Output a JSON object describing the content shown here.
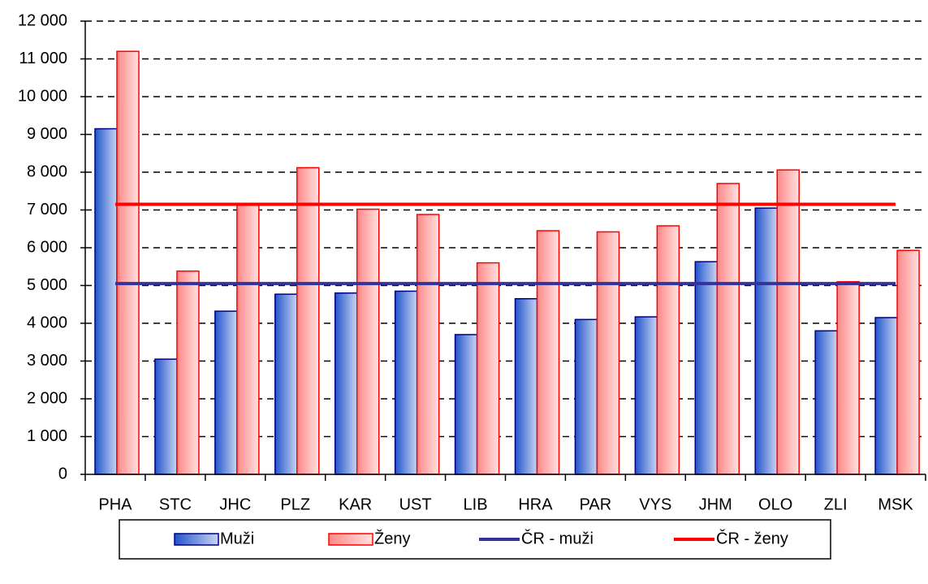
{
  "chart_data": {
    "type": "bar",
    "categories": [
      "PHA",
      "STC",
      "JHC",
      "PLZ",
      "KAR",
      "UST",
      "LIB",
      "HRA",
      "PAR",
      "VYS",
      "JHM",
      "OLO",
      "ZLI",
      "MSK"
    ],
    "series": [
      {
        "name": "Muži",
        "type": "bar",
        "color": "#2255cc",
        "stroke": "#000080",
        "values": [
          9150,
          3050,
          4320,
          4770,
          4800,
          4850,
          3700,
          4650,
          4100,
          4170,
          5630,
          7050,
          3800,
          4150
        ]
      },
      {
        "name": "Ženy",
        "type": "bar",
        "color": "#ff8888",
        "stroke": "#ff0000",
        "values": [
          11200,
          5380,
          7150,
          8120,
          7020,
          6880,
          5600,
          6450,
          6420,
          6580,
          7700,
          8060,
          5100,
          5930
        ]
      },
      {
        "name": "ČR - muži",
        "type": "line",
        "color": "#333399",
        "values": [
          5050,
          5050,
          5050,
          5050,
          5050,
          5050,
          5050,
          5050,
          5050,
          5050,
          5050,
          5050,
          5050,
          5050
        ]
      },
      {
        "name": "ČR - ženy",
        "type": "line",
        "color": "#ff0000",
        "values": [
          7150,
          7150,
          7150,
          7150,
          7150,
          7150,
          7150,
          7150,
          7150,
          7150,
          7150,
          7150,
          7150,
          7150
        ]
      }
    ],
    "ylim": [
      0,
      12000
    ],
    "yticks": [
      0,
      {
        "value": 1000,
        "label": "1 000"
      },
      {
        "value": 2000,
        "label": "2 000"
      },
      {
        "value": 3000,
        "label": "3 000"
      },
      {
        "value": 4000,
        "label": "4 000"
      },
      {
        "value": 5000,
        "label": "5 000"
      },
      {
        "value": 6000,
        "label": "6 000"
      },
      {
        "value": 7000,
        "label": "7 000"
      },
      {
        "value": 8000,
        "label": "8 000"
      },
      {
        "value": 9000,
        "label": "9 000"
      },
      {
        "value": 10000,
        "label": "10 000"
      },
      {
        "value": 11000,
        "label": "11 000"
      },
      {
        "value": 12000,
        "label": "12 000"
      }
    ],
    "grid": true,
    "legend": "bottom"
  }
}
